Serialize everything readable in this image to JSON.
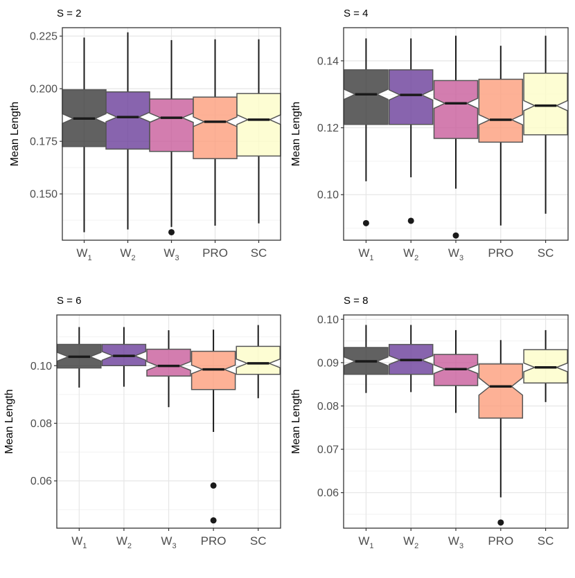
{
  "figure": {
    "ylabel": "Mean Length"
  },
  "colors": {
    "W1": "#3a3a3a",
    "W2": "#6a3d9a",
    "W3": "#c85c9b",
    "PRO": "#fc9e7c",
    "SC": "#fcfcc8",
    "median": "#1a1a1a",
    "whisker": "#1a1a1a",
    "outlier": "#1a1a1a",
    "grid_major": "#e6e6e6",
    "grid_minor": "#f2f2f2",
    "border": "#333333",
    "tick_text": "#4d4d4d"
  },
  "chart_data": [
    {
      "type": "boxplot",
      "title": "S = 2",
      "xlabel": "",
      "ylabel": "Mean Length",
      "categories": [
        {
          "key": "W1",
          "base": "W",
          "sub": "1"
        },
        {
          "key": "W2",
          "base": "W",
          "sub": "2"
        },
        {
          "key": "W3",
          "base": "W",
          "sub": "3"
        },
        {
          "key": "PRO",
          "base": "PRO",
          "sub": ""
        },
        {
          "key": "SC",
          "base": "SC",
          "sub": ""
        }
      ],
      "ylim": [
        0.128,
        0.229
      ],
      "yticks": [
        "0.150",
        "0.175",
        "0.200",
        "0.225"
      ],
      "ytick_values": [
        0.15,
        0.175,
        0.2,
        0.225
      ],
      "yminor": [
        0.1375,
        0.1625,
        0.1875,
        0.2125
      ],
      "boxes": [
        {
          "whisker_low": 0.1318,
          "q1": 0.1725,
          "median": 0.1858,
          "q3": 0.1995,
          "whisker_high": 0.2243,
          "notch_low": 0.1835,
          "notch_high": 0.1881,
          "outliers": []
        },
        {
          "whisker_low": 0.1331,
          "q1": 0.1713,
          "median": 0.1865,
          "q3": 0.1985,
          "whisker_high": 0.2268,
          "notch_low": 0.1843,
          "notch_high": 0.1888,
          "outliers": []
        },
        {
          "whisker_low": 0.1343,
          "q1": 0.1702,
          "median": 0.1862,
          "q3": 0.1951,
          "whisker_high": 0.2231,
          "notch_low": 0.184,
          "notch_high": 0.1884,
          "outliers": [
            0.1318
          ]
        },
        {
          "whisker_low": 0.1349,
          "q1": 0.1668,
          "median": 0.1843,
          "q3": 0.196,
          "whisker_high": 0.2235,
          "notch_low": 0.182,
          "notch_high": 0.1866,
          "outliers": []
        },
        {
          "whisker_low": 0.136,
          "q1": 0.168,
          "median": 0.1853,
          "q3": 0.1977,
          "whisker_high": 0.2235,
          "notch_low": 0.183,
          "notch_high": 0.1876,
          "outliers": []
        }
      ]
    },
    {
      "type": "boxplot",
      "title": "S = 4",
      "xlabel": "",
      "ylabel": "Mean Length",
      "categories": [
        {
          "key": "W1",
          "base": "W",
          "sub": "1"
        },
        {
          "key": "W2",
          "base": "W",
          "sub": "2"
        },
        {
          "key": "W3",
          "base": "W",
          "sub": "3"
        },
        {
          "key": "PRO",
          "base": "PRO",
          "sub": ""
        },
        {
          "key": "SC",
          "base": "SC",
          "sub": ""
        }
      ],
      "ylim": [
        0.0864,
        0.1499
      ],
      "yticks": [
        "0.10",
        "0.12",
        "0.14"
      ],
      "ytick_values": [
        0.1,
        0.12,
        0.14
      ],
      "yminor": [
        0.09,
        0.11,
        0.13
      ],
      "boxes": [
        {
          "whisker_low": 0.104,
          "q1": 0.121,
          "median": 0.13,
          "q3": 0.1373,
          "whisker_high": 0.1467,
          "notch_low": 0.1285,
          "notch_high": 0.1315,
          "outliers": [
            0.0915
          ]
        },
        {
          "whisker_low": 0.1052,
          "q1": 0.121,
          "median": 0.1298,
          "q3": 0.1373,
          "whisker_high": 0.1467,
          "notch_low": 0.1283,
          "notch_high": 0.1313,
          "outliers": [
            0.0922
          ]
        },
        {
          "whisker_low": 0.1018,
          "q1": 0.1168,
          "median": 0.1273,
          "q3": 0.1341,
          "whisker_high": 0.1475,
          "notch_low": 0.1258,
          "notch_high": 0.1288,
          "outliers": [
            0.0878
          ]
        },
        {
          "whisker_low": 0.0908,
          "q1": 0.1157,
          "median": 0.1224,
          "q3": 0.1345,
          "whisker_high": 0.1445,
          "notch_low": 0.1209,
          "notch_high": 0.1239,
          "outliers": []
        },
        {
          "whisker_low": 0.0943,
          "q1": 0.1179,
          "median": 0.1266,
          "q3": 0.1363,
          "whisker_high": 0.1475,
          "notch_low": 0.1251,
          "notch_high": 0.1281,
          "outliers": []
        }
      ]
    },
    {
      "type": "boxplot",
      "title": "S = 6",
      "xlabel": "",
      "ylabel": "Mean Length",
      "categories": [
        {
          "key": "W1",
          "base": "W",
          "sub": "1"
        },
        {
          "key": "W2",
          "base": "W",
          "sub": "2"
        },
        {
          "key": "W3",
          "base": "W",
          "sub": "3"
        },
        {
          "key": "PRO",
          "base": "PRO",
          "sub": ""
        },
        {
          "key": "SC",
          "base": "SC",
          "sub": ""
        }
      ],
      "ylim": [
        0.0436,
        0.1176
      ],
      "yticks": [
        "0.06",
        "0.08",
        "0.10"
      ],
      "ytick_values": [
        0.06,
        0.08,
        0.1
      ],
      "yminor": [
        0.05,
        0.07,
        0.09,
        0.11
      ],
      "boxes": [
        {
          "whisker_low": 0.0924,
          "q1": 0.0992,
          "median": 0.1031,
          "q3": 0.1074,
          "whisker_high": 0.1134,
          "notch_low": 0.1016,
          "notch_high": 0.1046,
          "outliers": []
        },
        {
          "whisker_low": 0.0927,
          "q1": 0.1,
          "median": 0.1034,
          "q3": 0.1074,
          "whisker_high": 0.1134,
          "notch_low": 0.1019,
          "notch_high": 0.1049,
          "outliers": []
        },
        {
          "whisker_low": 0.0856,
          "q1": 0.0964,
          "median": 0.0999,
          "q3": 0.1057,
          "whisker_high": 0.1123,
          "notch_low": 0.0984,
          "notch_high": 0.1014,
          "outliers": []
        },
        {
          "whisker_low": 0.077,
          "q1": 0.0917,
          "median": 0.0987,
          "q3": 0.105,
          "whisker_high": 0.1125,
          "notch_low": 0.0972,
          "notch_high": 0.1002,
          "outliers": [
            0.0584,
            0.0463
          ]
        },
        {
          "whisker_low": 0.0887,
          "q1": 0.097,
          "median": 0.1008,
          "q3": 0.1067,
          "whisker_high": 0.1141,
          "notch_low": 0.0993,
          "notch_high": 0.1023,
          "outliers": []
        }
      ]
    },
    {
      "type": "boxplot",
      "title": "S = 8",
      "xlabel": "",
      "ylabel": "Mean Length",
      "categories": [
        {
          "key": "W1",
          "base": "W",
          "sub": "1"
        },
        {
          "key": "W2",
          "base": "W",
          "sub": "2"
        },
        {
          "key": "W3",
          "base": "W",
          "sub": "3"
        },
        {
          "key": "PRO",
          "base": "PRO",
          "sub": ""
        },
        {
          "key": "SC",
          "base": "SC",
          "sub": ""
        }
      ],
      "ylim": [
        0.0518,
        0.101
      ],
      "yticks": [
        "0.06",
        "0.07",
        "0.08",
        "0.09",
        "0.10"
      ],
      "ytick_values": [
        0.06,
        0.07,
        0.08,
        0.09,
        0.1
      ],
      "yminor": [
        0.055,
        0.065,
        0.075,
        0.085,
        0.095
      ],
      "boxes": [
        {
          "whisker_low": 0.083,
          "q1": 0.0873,
          "median": 0.0903,
          "q3": 0.0935,
          "whisker_high": 0.0987,
          "notch_low": 0.0893,
          "notch_high": 0.0913,
          "outliers": []
        },
        {
          "whisker_low": 0.0832,
          "q1": 0.0873,
          "median": 0.0906,
          "q3": 0.0942,
          "whisker_high": 0.0987,
          "notch_low": 0.0896,
          "notch_high": 0.0916,
          "outliers": []
        },
        {
          "whisker_low": 0.0784,
          "q1": 0.0847,
          "median": 0.0885,
          "q3": 0.0919,
          "whisker_high": 0.0975,
          "notch_low": 0.0875,
          "notch_high": 0.0895,
          "outliers": []
        },
        {
          "whisker_low": 0.0589,
          "q1": 0.0772,
          "median": 0.0845,
          "q3": 0.0897,
          "whisker_high": 0.0952,
          "notch_low": 0.0825,
          "notch_high": 0.0865,
          "outliers": [
            0.0531
          ]
        },
        {
          "whisker_low": 0.0809,
          "q1": 0.0853,
          "median": 0.0889,
          "q3": 0.093,
          "whisker_high": 0.0975,
          "notch_low": 0.0879,
          "notch_high": 0.0899,
          "outliers": []
        }
      ]
    }
  ]
}
